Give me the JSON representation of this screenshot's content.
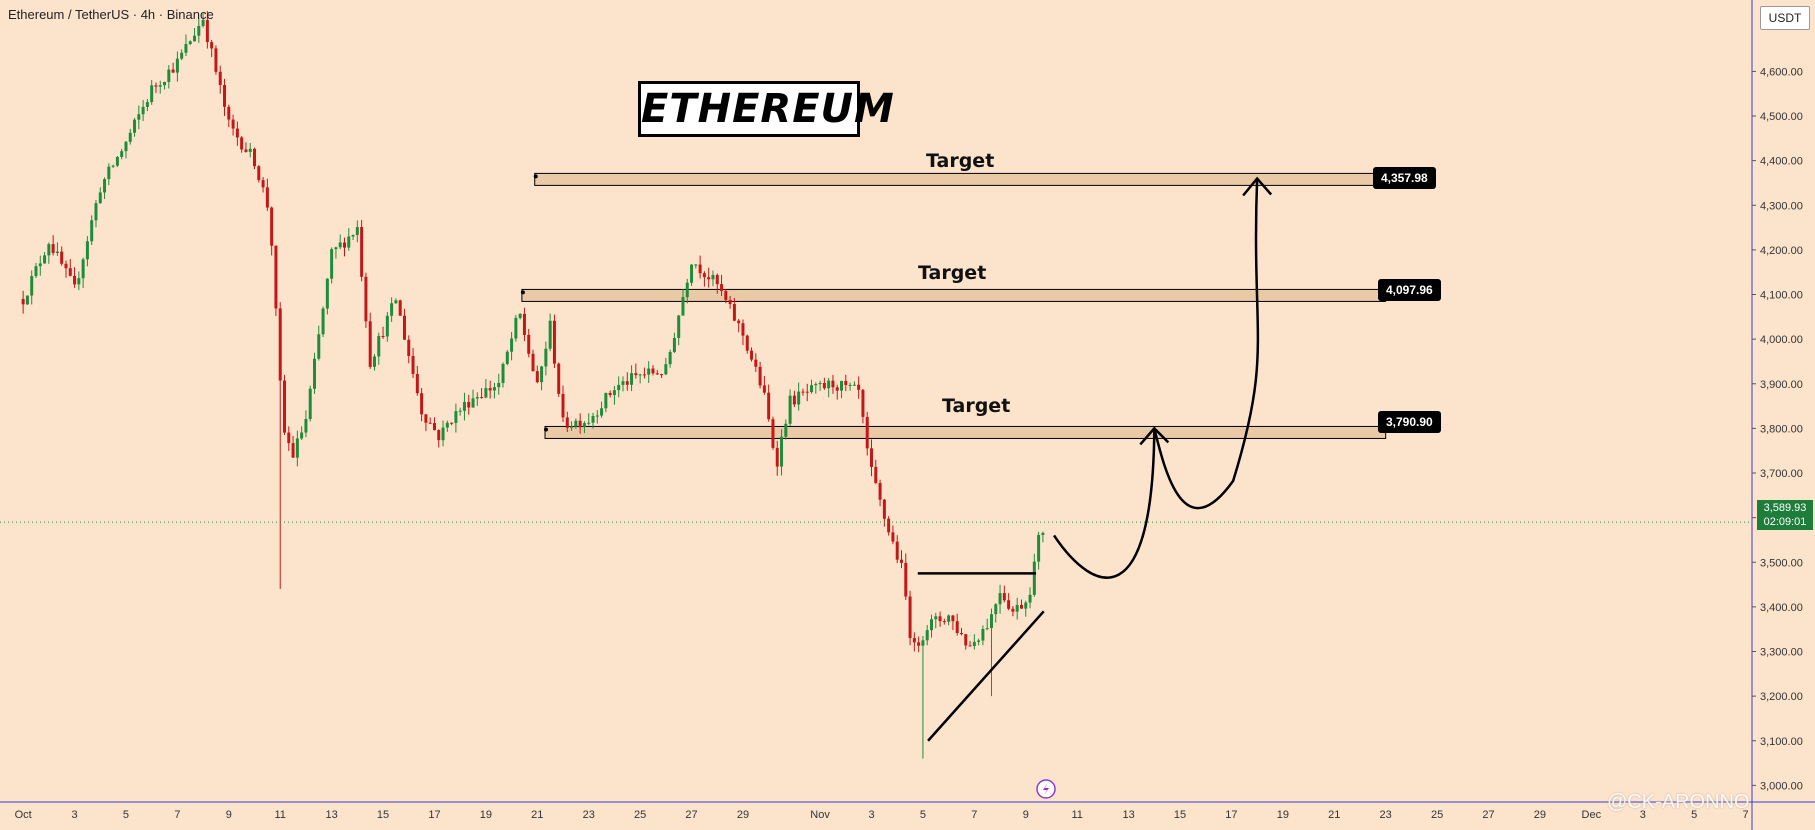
{
  "header": {
    "pair_title": "Ethereum / TetherUS · 4h · Binance",
    "currency": "USDT"
  },
  "annotations": {
    "title": "ETHEREUM",
    "target_label": "Target",
    "watermark": "@CK-ARONNO"
  },
  "colors": {
    "background": "#fce4cc",
    "up_candle": "#1e8c3a",
    "down_candle": "#c41717",
    "zone_fill": "#e9c9a6",
    "axis_line": "#3a3ad0"
  },
  "current_price": {
    "value": "3,589.93",
    "countdown": "02:09:01"
  },
  "chart_data": {
    "type": "candlestick",
    "title": "Ethereum / TetherUS · 4h · Binance",
    "ylabel": "USDT",
    "ylim": [
      2900,
      4760
    ],
    "y_ticks": [
      "3,000.00",
      "3,100.00",
      "3,200.00",
      "3,300.00",
      "3,400.00",
      "3,500.00",
      "3,600.00",
      "3,700.00",
      "3,800.00",
      "3,900.00",
      "4,000.00",
      "4,100.00",
      "4,200.00",
      "4,300.00",
      "4,400.00",
      "4,500.00",
      "4,600.00"
    ],
    "x_ticks": [
      "Oct",
      "3",
      "5",
      "7",
      "9",
      "11",
      "13",
      "15",
      "17",
      "19",
      "21",
      "23",
      "25",
      "27",
      "29",
      "Nov",
      "3",
      "5",
      "7",
      "9",
      "11",
      "13",
      "15",
      "17",
      "19",
      "21",
      "23",
      "25",
      "27",
      "29",
      "Dec",
      "3",
      "5",
      "7"
    ],
    "x_tick_days": [
      0,
      2,
      4,
      6,
      8,
      10,
      12,
      14,
      16,
      18,
      20,
      22,
      24,
      26,
      28,
      31,
      33,
      35,
      37,
      39,
      41,
      43,
      45,
      47,
      49,
      51,
      53,
      55,
      57,
      59,
      61,
      63,
      65,
      67
    ],
    "x_range_days": [
      -0.9,
      69.7
    ],
    "price_anchors": [
      [
        0,
        4090
      ],
      [
        1.0,
        4220
      ],
      [
        2.0,
        4110
      ],
      [
        3.0,
        4340
      ],
      [
        4.0,
        4440
      ],
      [
        5.0,
        4560
      ],
      [
        6.0,
        4620
      ],
      [
        7.0,
        4720
      ],
      [
        8.0,
        4480
      ],
      [
        9.0,
        4400
      ],
      [
        9.6,
        4280
      ],
      [
        10.1,
        3800
      ],
      [
        10.5,
        3740
      ],
      [
        11.0,
        3820
      ],
      [
        12.0,
        4190
      ],
      [
        13.0,
        4250
      ],
      [
        13.5,
        3950
      ],
      [
        14.5,
        4090
      ],
      [
        15.5,
        3840
      ],
      [
        16.2,
        3780
      ],
      [
        16.6,
        3820
      ],
      [
        17.5,
        3870
      ],
      [
        18.5,
        3900
      ],
      [
        19.3,
        4060
      ],
      [
        20.0,
        3890
      ],
      [
        20.5,
        4030
      ],
      [
        21.0,
        3810
      ],
      [
        22.0,
        3820
      ],
      [
        23.0,
        3890
      ],
      [
        24.0,
        3920
      ],
      [
        25.0,
        3930
      ],
      [
        26.0,
        4180
      ],
      [
        27.0,
        4120
      ],
      [
        28.0,
        4010
      ],
      [
        28.8,
        3880
      ],
      [
        29.3,
        3720
      ],
      [
        29.8,
        3860
      ],
      [
        30.5,
        3880
      ],
      [
        31.5,
        3900
      ],
      [
        32.5,
        3880
      ],
      [
        32.9,
        3720
      ],
      [
        33.5,
        3600
      ],
      [
        34.2,
        3480
      ],
      [
        34.6,
        3300
      ],
      [
        35.2,
        3360
      ],
      [
        36.0,
        3380
      ],
      [
        36.8,
        3310
      ],
      [
        37.6,
        3370
      ],
      [
        38.0,
        3440
      ],
      [
        38.5,
        3390
      ],
      [
        39.1,
        3420
      ],
      [
        39.5,
        3550
      ],
      [
        39.8,
        3590
      ]
    ],
    "swing_lows": [
      [
        10.0,
        3440
      ],
      [
        35.0,
        3060
      ],
      [
        37.6,
        3200
      ]
    ],
    "targets": [
      {
        "label": "Target",
        "price": 4357.98,
        "price_label": "4,357.98"
      },
      {
        "label": "Target",
        "price": 4097.96,
        "price_label": "4,097.96"
      },
      {
        "label": "Target",
        "price": 3790.9,
        "price_label": "3,790.90"
      }
    ],
    "current_price": 3589.93,
    "resistance_level": 3475,
    "support_line": {
      "from": [
        35.2,
        3100
      ],
      "to": [
        39.7,
        3390
      ]
    },
    "projection_path": [
      [
        40.1,
        3560
      ],
      [
        42.4,
        3470
      ],
      [
        44.0,
        3800
      ],
      [
        45.9,
        3660
      ],
      [
        48.0,
        4360
      ]
    ],
    "grid": false
  }
}
